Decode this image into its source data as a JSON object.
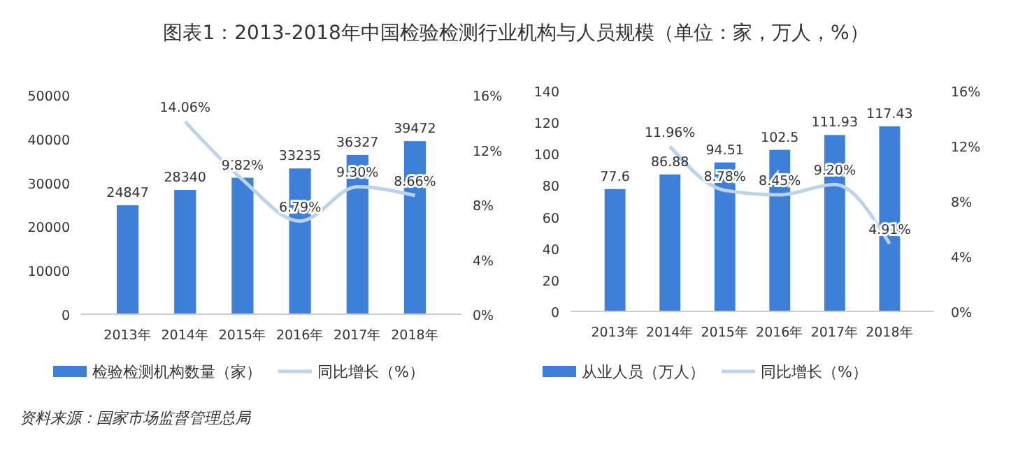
{
  "chart_data": [
    {
      "type": "bar",
      "title": "图表1：2013-2018年中国检验检测行业机构与人员规模（单位：家，万人，%）",
      "categories": [
        "2013年",
        "2014年",
        "2015年",
        "2016年",
        "2017年",
        "2018年"
      ],
      "series": [
        {
          "name": "检验检测机构数量（家）",
          "color": "#3d7fd9",
          "values": [
            24847,
            28340,
            31122,
            33235,
            36327,
            39472
          ]
        },
        {
          "name": "同比增长（%）",
          "type": "line",
          "axis": "y2",
          "color": "#bcd3ec",
          "values": [
            null,
            14.06,
            9.82,
            6.79,
            9.3,
            8.66
          ],
          "value_labels": [
            null,
            "14.06%",
            "9.82%",
            "6.79%",
            "9.30%",
            "8.66%"
          ]
        }
      ],
      "ylim": [
        0,
        50000
      ],
      "yticks": [
        0,
        10000,
        20000,
        30000,
        40000,
        50000
      ],
      "y2lim": [
        0,
        16
      ],
      "y2ticks": [
        {
          "value": 0,
          "label": "0%"
        },
        {
          "value": 4,
          "label": "4%"
        },
        {
          "value": 8,
          "label": "8%"
        },
        {
          "value": 12,
          "label": "12%"
        },
        {
          "value": 16,
          "label": "16%"
        }
      ],
      "data_labels": true,
      "grid": false,
      "legend": "bottom"
    },
    {
      "type": "bar",
      "categories": [
        "2013年",
        "2014年",
        "2015年",
        "2016年",
        "2017年",
        "2018年"
      ],
      "series": [
        {
          "name": "从业人员（万人）",
          "color": "#3d7fd9",
          "values": [
            77.6,
            86.88,
            94.51,
            102.5,
            111.93,
            117.43
          ]
        },
        {
          "name": "同比增长（%）",
          "type": "line",
          "axis": "y2",
          "color": "#bcd3ec",
          "values": [
            null,
            11.96,
            8.78,
            8.45,
            9.2,
            4.91
          ],
          "value_labels": [
            null,
            "11.96%",
            "8.78%",
            "8.45%",
            "9.20%",
            "4.91%"
          ]
        }
      ],
      "ylim": [
        0,
        140
      ],
      "yticks": [
        0,
        20,
        40,
        60,
        80,
        100,
        120,
        140
      ],
      "y2lim": [
        0,
        16
      ],
      "y2ticks": [
        {
          "value": 0,
          "label": "0%"
        },
        {
          "value": 4,
          "label": "4%"
        },
        {
          "value": 8,
          "label": "8%"
        },
        {
          "value": 12,
          "label": "12%"
        },
        {
          "value": 16,
          "label": "16%"
        }
      ],
      "data_labels": true,
      "grid": false,
      "legend": "bottom",
      "annotations": [
        "资料来源：国家市场监督管理总局"
      ]
    }
  ]
}
